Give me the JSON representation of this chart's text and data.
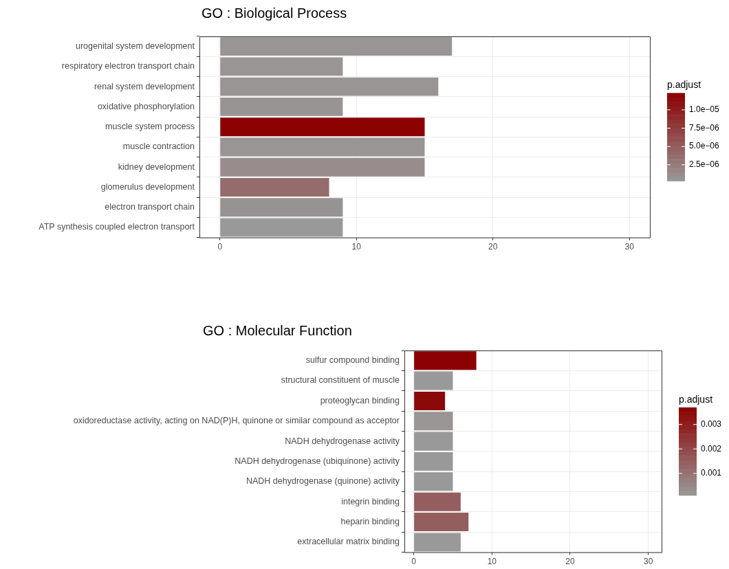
{
  "chart_data": [
    {
      "type": "bar",
      "orientation": "horizontal",
      "title": "GO : Biological Process",
      "categories": [
        "urogenital system development",
        "respiratory electron transport chain",
        "renal system development",
        "oxidative phosphorylation",
        "muscle system process",
        "muscle contraction",
        "kidney development",
        "glomerulus development",
        "electron transport chain",
        "ATP synthesis coupled electron transport"
      ],
      "values": [
        17,
        9,
        16,
        9,
        15,
        15,
        15,
        8,
        9,
        9
      ],
      "cvalues": [
        6e-07,
        6e-07,
        6e-07,
        7e-07,
        1.23e-05,
        6e-07,
        1.3e-06,
        3.8e-06,
        8e-07,
        3e-07
      ],
      "clabel": "p.adjust",
      "clim": [
        3e-07,
        1.23e-05
      ],
      "cticks": [
        {
          "value": 2.5e-06,
          "label": "2.5e−06"
        },
        {
          "value": 5e-06,
          "label": "5.0e−06"
        },
        {
          "value": 7.5e-06,
          "label": "7.5e−06"
        },
        {
          "value": 1e-05,
          "label": "1.0e−05"
        }
      ],
      "xlim": [
        -1.5,
        31.5
      ],
      "xticks": [
        0,
        10,
        20,
        30
      ],
      "grid": true
    },
    {
      "type": "bar",
      "orientation": "horizontal",
      "title": "GO : Molecular Function",
      "categories": [
        "sulfur compound binding",
        "structural constituent of muscle",
        "proteoglycan binding",
        "oxidoreductase activity, acting on NAD(P)H, quinone or similar compound as acceptor",
        "NADH dehydrogenase activity",
        "NADH dehydrogenase (ubiquinone) activity",
        "NADH dehydrogenase (quinone) activity",
        "integrin binding",
        "heparin binding",
        "extracellular matrix binding"
      ],
      "values": [
        8,
        5,
        4,
        5,
        5,
        5,
        5,
        6,
        7,
        6
      ],
      "cvalues": [
        0.0037,
        0.0001,
        0.0035,
        0.0002,
        0.0001,
        0.0001,
        0.0001,
        0.0015,
        0.0015,
        0.0001
      ],
      "clabel": "p.adjust",
      "clim": [
        0.0001,
        0.0037
      ],
      "cticks": [
        0.001,
        0.002,
        0.003
      ],
      "xlim": [
        -1.2,
        31.7
      ],
      "xticks": [
        0,
        10,
        20,
        30
      ],
      "grid": true
    }
  ]
}
